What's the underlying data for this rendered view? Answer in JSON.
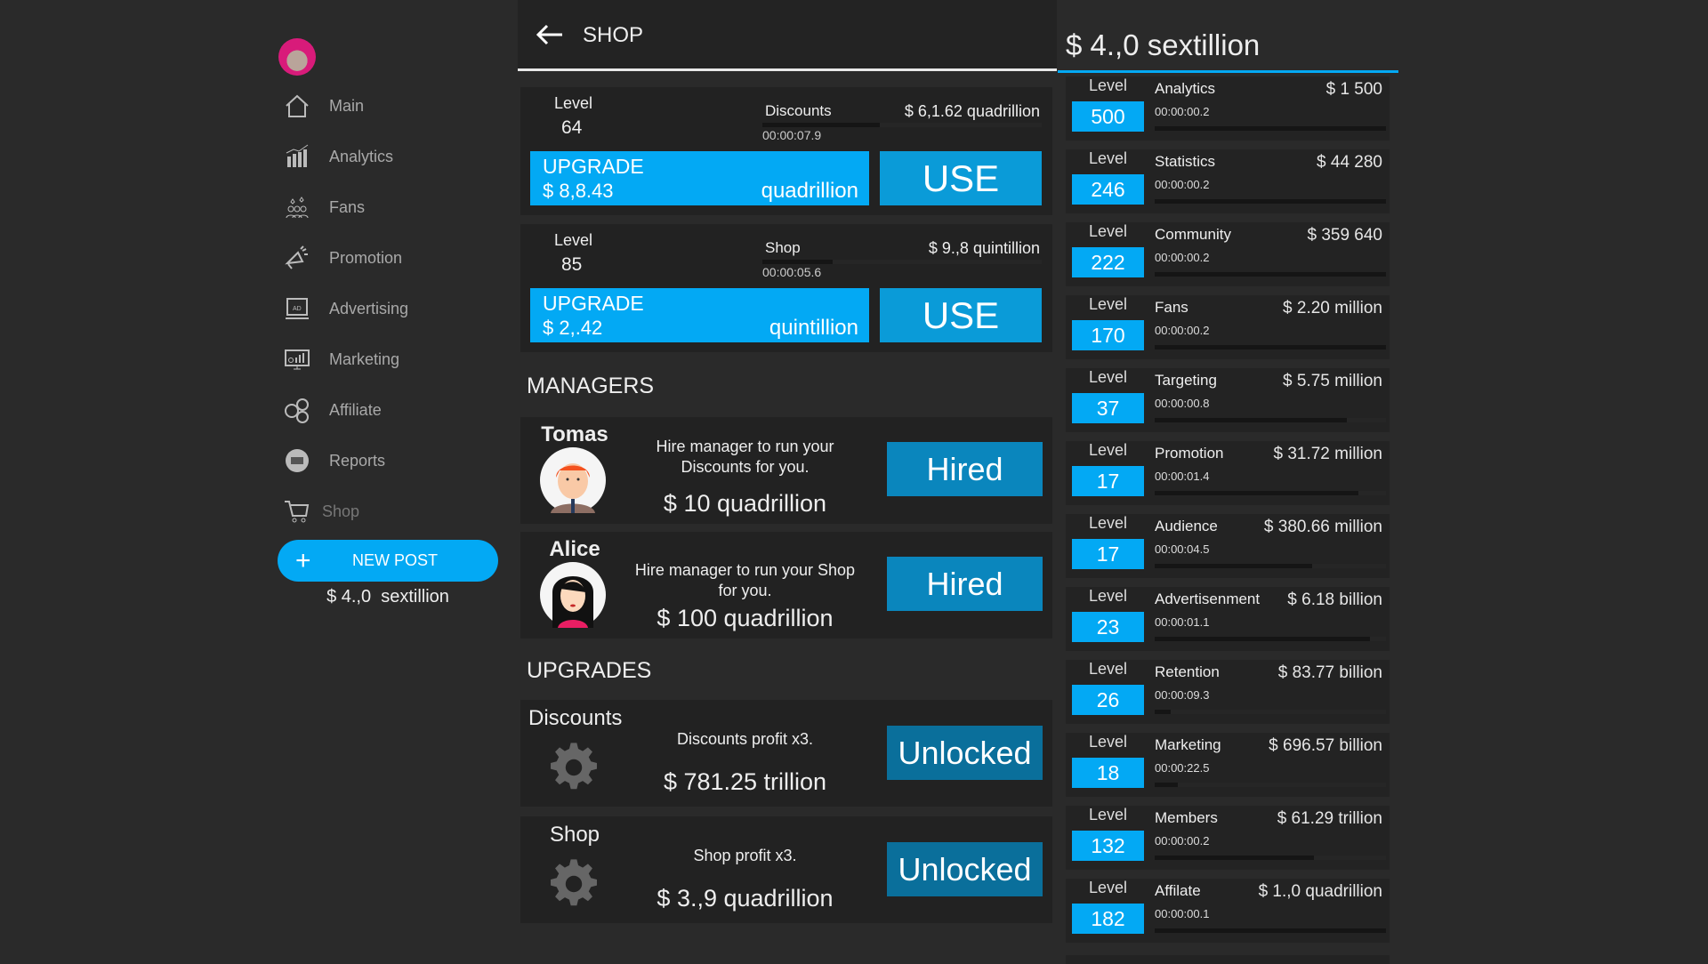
{
  "sidebar": {
    "items": [
      {
        "label": "Main",
        "icon": "home-icon"
      },
      {
        "label": "Analytics",
        "icon": "bar-chart-icon"
      },
      {
        "label": "Fans",
        "icon": "fans-icon"
      },
      {
        "label": "Promotion",
        "icon": "megaphone-icon"
      },
      {
        "label": "Advertising",
        "icon": "ad-screen-icon"
      },
      {
        "label": "Marketing",
        "icon": "monitor-chart-icon"
      },
      {
        "label": "Affiliate",
        "icon": "users-network-icon"
      },
      {
        "label": "Reports",
        "icon": "reports-icon"
      },
      {
        "label": "Shop",
        "icon": "cart-icon"
      }
    ],
    "new_post": "NEW POST",
    "money": "$ 4.,0  sextillion"
  },
  "header": {
    "title": "SHOP"
  },
  "businesses": [
    {
      "level_label": "Level",
      "level": "64",
      "name": "Discounts",
      "time": "00:00:07.9",
      "profit": "$ 6,1.62 quadrillion",
      "progress": 0.42,
      "upgrade_label": "UPGRADE",
      "upgrade_cost": "$ 8,8.43",
      "upgrade_unit": "quadrillion",
      "use_label": "USE"
    },
    {
      "level_label": "Level",
      "level": "85",
      "name": "Shop",
      "time": "00:00:05.6",
      "profit": "$ 9.,8 quintillion",
      "progress": 0.25,
      "upgrade_label": "UPGRADE",
      "upgrade_cost": "$ 2,.42",
      "upgrade_unit": "quintillion",
      "use_label": "USE"
    }
  ],
  "managers": {
    "title": "MANAGERS",
    "items": [
      {
        "name": "Tomas",
        "desc": "Hire manager to run your Discounts for you.",
        "price": "$ 10 quadrillion",
        "button": "Hired"
      },
      {
        "name": "Alice",
        "desc": "Hire manager to run your Shop for you.",
        "price": "$ 100 quadrillion",
        "button": "Hired"
      }
    ]
  },
  "upgrades": {
    "title": "UPGRADES",
    "items": [
      {
        "name": "Discounts",
        "desc": "Discounts profit x3.",
        "price": "$ 781.25 trillion",
        "button": "Unlocked"
      },
      {
        "name": "Shop",
        "desc": "Shop profit x3.",
        "price": "$ 3.,9 quadrillion",
        "button": "Unlocked"
      }
    ]
  },
  "right": {
    "money": "$ 4.,0 sextillion",
    "rows": [
      {
        "level": "500",
        "name": "Analytics",
        "time": "00:00:00.2",
        "price": "$ 1 500",
        "progress": 1.0
      },
      {
        "level": "246",
        "name": "Statistics",
        "time": "00:00:00.2",
        "price": "$ 44 280",
        "progress": 1.0
      },
      {
        "level": "222",
        "name": "Community",
        "time": "00:00:00.2",
        "price": "$ 359 640",
        "progress": 1.0
      },
      {
        "level": "170",
        "name": "Fans",
        "time": "00:00:00.2",
        "price": "$ 2.20 million",
        "progress": 1.0
      },
      {
        "level": "37",
        "name": "Targeting",
        "time": "00:00:00.8",
        "price": "$ 5.75 million",
        "progress": 0.83
      },
      {
        "level": "17",
        "name": "Promotion",
        "time": "00:00:01.4",
        "price": "$ 31.72 million",
        "progress": 0.88
      },
      {
        "level": "17",
        "name": "Audience",
        "time": "00:00:04.5",
        "price": "$ 380.66 million",
        "progress": 0.68
      },
      {
        "level": "23",
        "name": "Advertisenment",
        "time": "00:00:01.1",
        "price": "$ 6.18 billion",
        "progress": 0.93
      },
      {
        "level": "26",
        "name": "Retention",
        "time": "00:00:09.3",
        "price": "$ 83.77 billion",
        "progress": 0.07
      },
      {
        "level": "18",
        "name": "Marketing",
        "time": "00:00:22.5",
        "price": "$ 696.57 billion",
        "progress": 0.1
      },
      {
        "level": "132",
        "name": "Members",
        "time": "00:00:00.2",
        "price": "$ 61.29 trillion",
        "progress": 0.69
      },
      {
        "level": "182",
        "name": "Affilate",
        "time": "00:00:00.1",
        "price": "$ 1.,0 quadrillion",
        "progress": 1.0
      }
    ],
    "level_label": "Level"
  },
  "colors": {
    "accent": "#03a9f4",
    "hired": "#0a86bd",
    "unlocked": "#0a6f9b"
  }
}
